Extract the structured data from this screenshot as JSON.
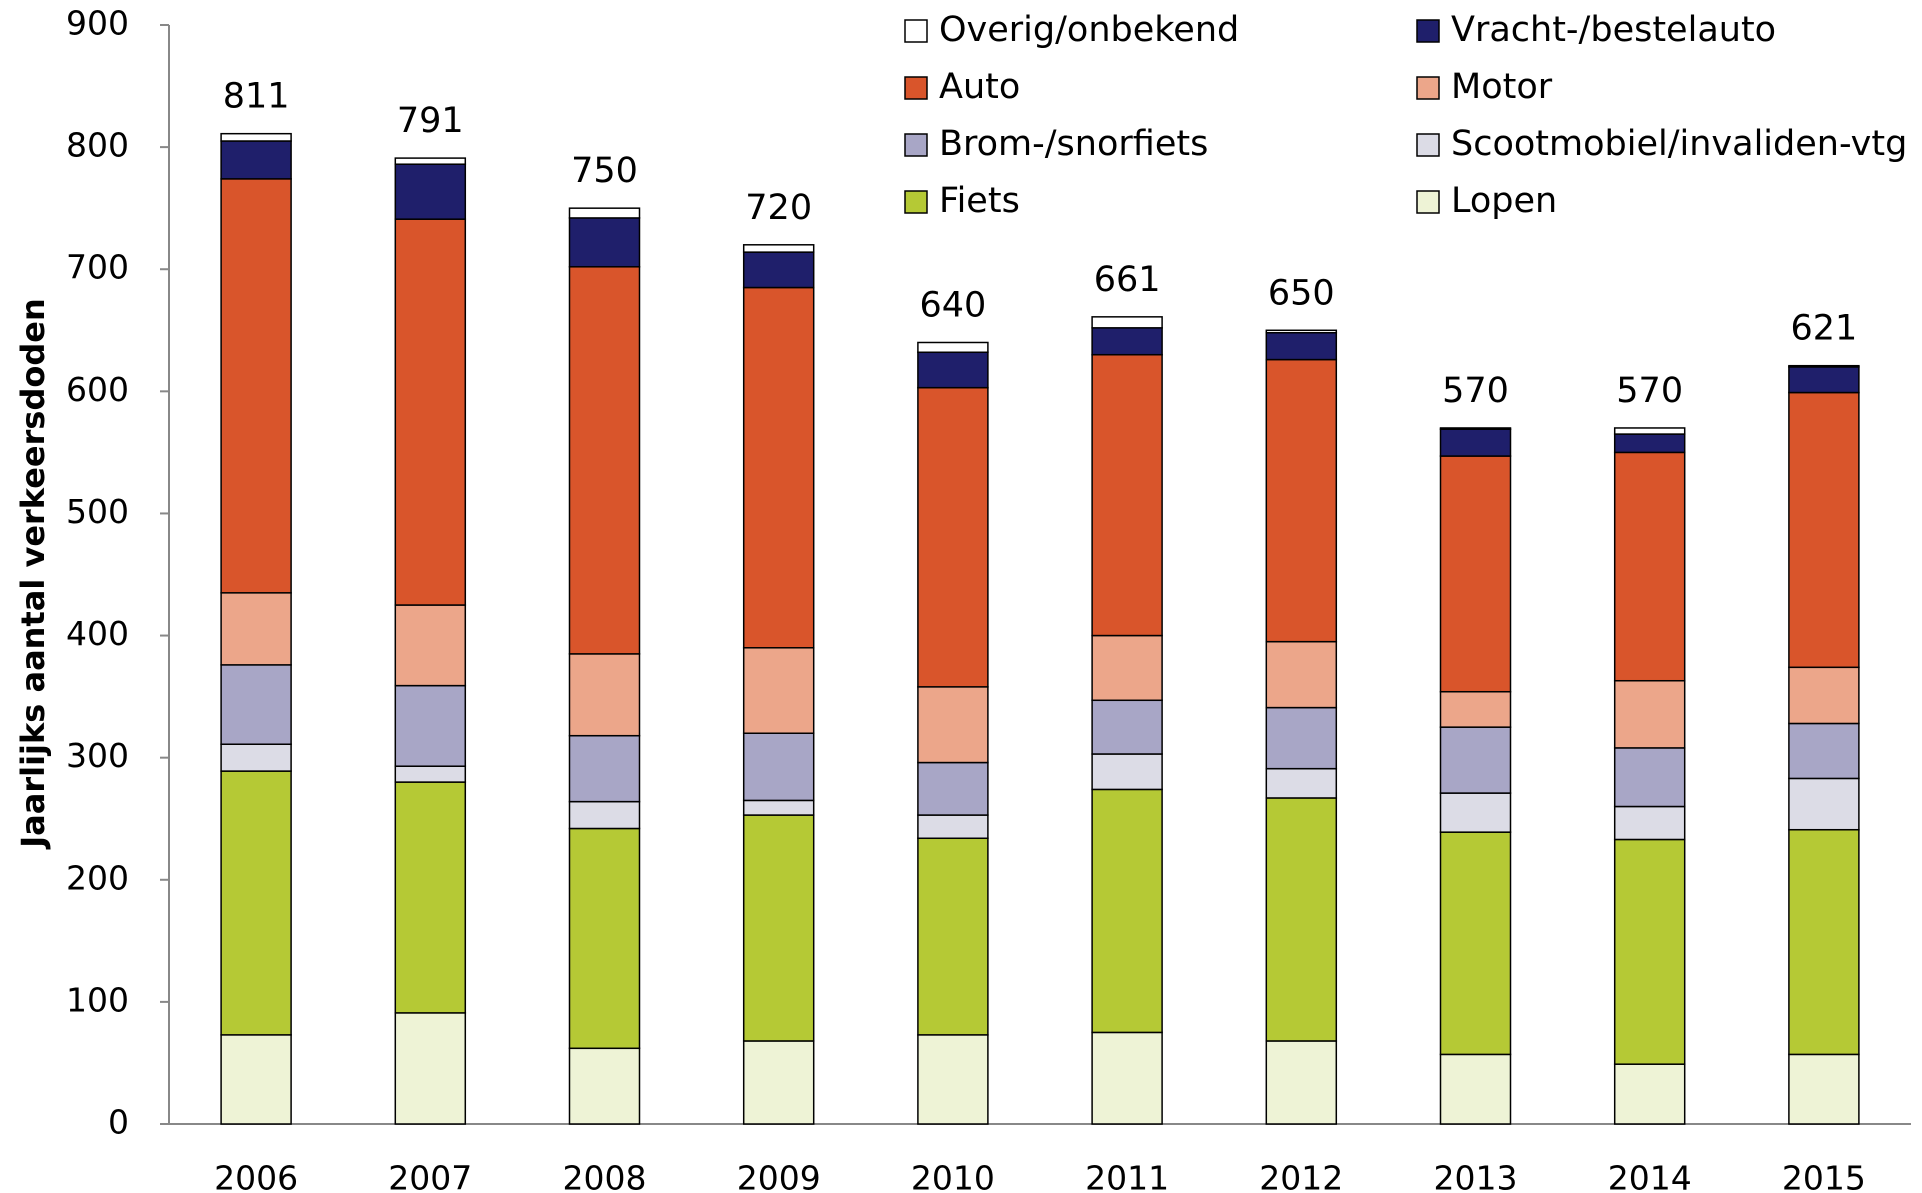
{
  "chart_data": {
    "type": "stacked-bar",
    "y_label": "Jaarlijks aantal verkeersdoden",
    "categories": [
      "2006",
      "2007",
      "2008",
      "2009",
      "2010",
      "2011",
      "2012",
      "2013",
      "2014",
      "2015"
    ],
    "series": [
      {
        "name": "Lopen",
        "color": "#eef3d6",
        "values": [
          73,
          91,
          62,
          68,
          73,
          75,
          68,
          57,
          49,
          57
        ]
      },
      {
        "name": "Fiets",
        "color": "#b5c935",
        "values": [
          216,
          189,
          180,
          185,
          161,
          199,
          199,
          182,
          184,
          184
        ]
      },
      {
        "name": "Scootmobiel/invaliden-vtg",
        "color": "#dcdce6",
        "values": [
          22,
          13,
          22,
          12,
          19,
          29,
          24,
          32,
          27,
          42
        ]
      },
      {
        "name": "Brom-/snorfiets",
        "color": "#a8a6c6",
        "values": [
          65,
          66,
          54,
          55,
          43,
          44,
          50,
          54,
          48,
          45
        ]
      },
      {
        "name": "Motor",
        "color": "#eca68a",
        "values": [
          59,
          66,
          67,
          70,
          62,
          53,
          54,
          29,
          55,
          46
        ]
      },
      {
        "name": "Auto",
        "color": "#d9552b",
        "values": [
          339,
          316,
          317,
          295,
          245,
          230,
          231,
          193,
          187,
          225
        ]
      },
      {
        "name": "Vracht-/bestelauto",
        "color": "#1f1f6b",
        "values": [
          31,
          45,
          40,
          29,
          29,
          22,
          22,
          22,
          15,
          21
        ]
      },
      {
        "name": "Overig/onbekend",
        "color": "#ffffff",
        "values": [
          6,
          5,
          8,
          6,
          8,
          9,
          2,
          1,
          5,
          1
        ]
      }
    ],
    "totals": [
      811,
      791,
      750,
      720,
      640,
      661,
      650,
      570,
      570,
      621
    ],
    "ylim": [
      0,
      900
    ],
    "yticks": [
      0,
      100,
      200,
      300,
      400,
      500,
      600,
      700,
      800,
      900
    ],
    "grid": false
  }
}
